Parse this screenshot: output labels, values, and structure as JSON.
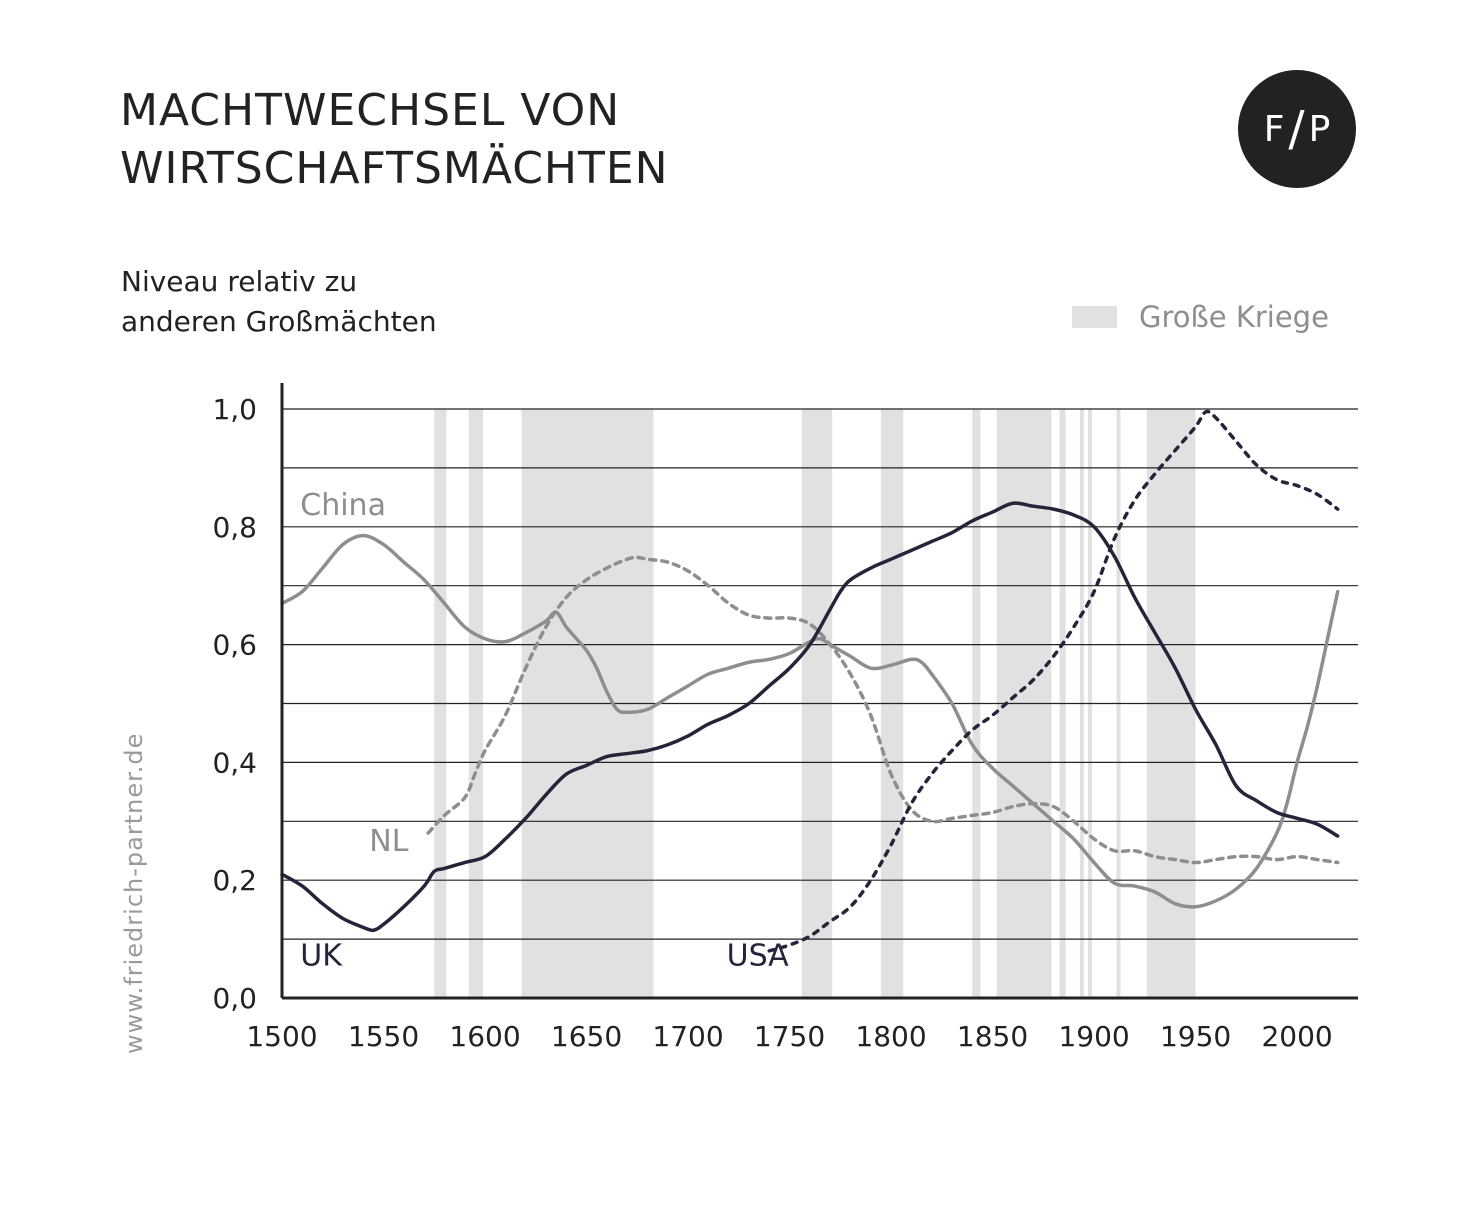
{
  "header": {
    "title_line1": "MACHTWECHSEL VON",
    "title_line2": "WIRTSCHAFTSMÄCHTEN",
    "subtitle_line1": "Niveau relativ zu",
    "subtitle_line2": "anderen Großmächten"
  },
  "logo": {
    "left": "F",
    "slash": "/",
    "right": "P"
  },
  "legend": {
    "wars_label": "Große Kriege",
    "wars_color": "#e1e1e1"
  },
  "watermark": "www.friedrich-partner.de",
  "chart_data": {
    "type": "line",
    "xlim": [
      1500,
      2030
    ],
    "ylim": [
      0,
      1.05
    ],
    "x_ticks": [
      1500,
      1550,
      1600,
      1650,
      1700,
      1750,
      1800,
      1850,
      1900,
      1950,
      2000
    ],
    "y_ticks": [
      {
        "value": 0.0,
        "label": "0,0"
      },
      {
        "value": 0.2,
        "label": "0,2"
      },
      {
        "value": 0.4,
        "label": "0,4"
      },
      {
        "value": 0.6,
        "label": "0,6"
      },
      {
        "value": 0.8,
        "label": "0,8"
      },
      {
        "value": 1.0,
        "label": "1,0"
      }
    ],
    "gridlines": [
      0.1,
      0.2,
      0.3,
      0.4,
      0.5,
      0.6,
      0.7,
      0.8,
      0.9,
      1.0
    ],
    "wars": [
      [
        1575,
        1581
      ],
      [
        1592,
        1599
      ],
      [
        1618,
        1683
      ],
      [
        1756,
        1771
      ],
      [
        1795,
        1806
      ],
      [
        1840,
        1844
      ],
      [
        1852,
        1879
      ],
      [
        1883,
        1886
      ],
      [
        1893,
        1895
      ],
      [
        1897,
        1899
      ],
      [
        1911,
        1913
      ],
      [
        1926,
        1950
      ]
    ],
    "series": [
      {
        "name": "China",
        "color": "#8e8e8e",
        "dash": "",
        "label_pos": [
          1509,
          0.82
        ],
        "points": [
          [
            1500,
            0.67
          ],
          [
            1510,
            0.69
          ],
          [
            1520,
            0.73
          ],
          [
            1530,
            0.77
          ],
          [
            1540,
            0.785
          ],
          [
            1550,
            0.77
          ],
          [
            1560,
            0.74
          ],
          [
            1570,
            0.71
          ],
          [
            1580,
            0.67
          ],
          [
            1590,
            0.63
          ],
          [
            1600,
            0.61
          ],
          [
            1610,
            0.605
          ],
          [
            1620,
            0.62
          ],
          [
            1630,
            0.64
          ],
          [
            1635,
            0.655
          ],
          [
            1640,
            0.63
          ],
          [
            1645,
            0.61
          ],
          [
            1650,
            0.59
          ],
          [
            1655,
            0.56
          ],
          [
            1660,
            0.52
          ],
          [
            1665,
            0.49
          ],
          [
            1670,
            0.485
          ],
          [
            1680,
            0.49
          ],
          [
            1690,
            0.51
          ],
          [
            1700,
            0.53
          ],
          [
            1710,
            0.55
          ],
          [
            1720,
            0.56
          ],
          [
            1730,
            0.57
          ],
          [
            1740,
            0.575
          ],
          [
            1750,
            0.585
          ],
          [
            1760,
            0.605
          ],
          [
            1765,
            0.61
          ],
          [
            1770,
            0.6
          ],
          [
            1780,
            0.58
          ],
          [
            1790,
            0.56
          ],
          [
            1800,
            0.565
          ],
          [
            1810,
            0.575
          ],
          [
            1815,
            0.57
          ],
          [
            1820,
            0.55
          ],
          [
            1830,
            0.5
          ],
          [
            1840,
            0.43
          ],
          [
            1850,
            0.39
          ],
          [
            1860,
            0.36
          ],
          [
            1870,
            0.33
          ],
          [
            1880,
            0.3
          ],
          [
            1890,
            0.27
          ],
          [
            1900,
            0.23
          ],
          [
            1910,
            0.195
          ],
          [
            1920,
            0.19
          ],
          [
            1930,
            0.18
          ],
          [
            1940,
            0.16
          ],
          [
            1950,
            0.155
          ],
          [
            1960,
            0.165
          ],
          [
            1970,
            0.185
          ],
          [
            1980,
            0.22
          ],
          [
            1990,
            0.28
          ],
          [
            1995,
            0.33
          ],
          [
            2000,
            0.4
          ],
          [
            2005,
            0.46
          ],
          [
            2010,
            0.53
          ],
          [
            2015,
            0.61
          ],
          [
            2020,
            0.69
          ]
        ]
      },
      {
        "name": "NL",
        "color": "#8e8e8e",
        "dash": "6 6",
        "label_pos": [
          1543,
          0.25
        ],
        "points": [
          [
            1572,
            0.28
          ],
          [
            1580,
            0.31
          ],
          [
            1590,
            0.34
          ],
          [
            1595,
            0.38
          ],
          [
            1600,
            0.42
          ],
          [
            1610,
            0.48
          ],
          [
            1620,
            0.56
          ],
          [
            1630,
            0.63
          ],
          [
            1640,
            0.68
          ],
          [
            1650,
            0.71
          ],
          [
            1660,
            0.73
          ],
          [
            1670,
            0.745
          ],
          [
            1675,
            0.748
          ],
          [
            1680,
            0.745
          ],
          [
            1690,
            0.74
          ],
          [
            1700,
            0.725
          ],
          [
            1710,
            0.7
          ],
          [
            1720,
            0.67
          ],
          [
            1730,
            0.65
          ],
          [
            1740,
            0.645
          ],
          [
            1750,
            0.645
          ],
          [
            1760,
            0.635
          ],
          [
            1770,
            0.6
          ],
          [
            1780,
            0.55
          ],
          [
            1790,
            0.48
          ],
          [
            1800,
            0.38
          ],
          [
            1810,
            0.32
          ],
          [
            1820,
            0.3
          ],
          [
            1830,
            0.305
          ],
          [
            1840,
            0.31
          ],
          [
            1850,
            0.315
          ],
          [
            1860,
            0.325
          ],
          [
            1870,
            0.33
          ],
          [
            1880,
            0.325
          ],
          [
            1890,
            0.3
          ],
          [
            1900,
            0.27
          ],
          [
            1910,
            0.25
          ],
          [
            1920,
            0.25
          ],
          [
            1930,
            0.24
          ],
          [
            1940,
            0.235
          ],
          [
            1950,
            0.23
          ],
          [
            1960,
            0.235
          ],
          [
            1970,
            0.24
          ],
          [
            1980,
            0.24
          ],
          [
            1990,
            0.235
          ],
          [
            2000,
            0.24
          ],
          [
            2010,
            0.235
          ],
          [
            2020,
            0.23
          ]
        ]
      },
      {
        "name": "UK",
        "color": "#25253a",
        "dash": "",
        "label_pos": [
          1509,
          0.055
        ],
        "points": [
          [
            1500,
            0.21
          ],
          [
            1510,
            0.19
          ],
          [
            1520,
            0.16
          ],
          [
            1530,
            0.135
          ],
          [
            1540,
            0.12
          ],
          [
            1545,
            0.115
          ],
          [
            1550,
            0.125
          ],
          [
            1560,
            0.155
          ],
          [
            1570,
            0.19
          ],
          [
            1575,
            0.215
          ],
          [
            1580,
            0.22
          ],
          [
            1590,
            0.23
          ],
          [
            1600,
            0.24
          ],
          [
            1610,
            0.27
          ],
          [
            1620,
            0.305
          ],
          [
            1630,
            0.345
          ],
          [
            1640,
            0.38
          ],
          [
            1650,
            0.395
          ],
          [
            1660,
            0.41
          ],
          [
            1670,
            0.415
          ],
          [
            1680,
            0.42
          ],
          [
            1690,
            0.43
          ],
          [
            1700,
            0.445
          ],
          [
            1710,
            0.465
          ],
          [
            1720,
            0.48
          ],
          [
            1730,
            0.5
          ],
          [
            1740,
            0.53
          ],
          [
            1750,
            0.56
          ],
          [
            1760,
            0.6
          ],
          [
            1770,
            0.66
          ],
          [
            1775,
            0.69
          ],
          [
            1780,
            0.71
          ],
          [
            1790,
            0.73
          ],
          [
            1800,
            0.745
          ],
          [
            1810,
            0.76
          ],
          [
            1820,
            0.775
          ],
          [
            1830,
            0.79
          ],
          [
            1840,
            0.81
          ],
          [
            1850,
            0.825
          ],
          [
            1860,
            0.84
          ],
          [
            1870,
            0.835
          ],
          [
            1880,
            0.83
          ],
          [
            1890,
            0.82
          ],
          [
            1900,
            0.8
          ],
          [
            1910,
            0.75
          ],
          [
            1920,
            0.68
          ],
          [
            1930,
            0.62
          ],
          [
            1940,
            0.56
          ],
          [
            1950,
            0.49
          ],
          [
            1960,
            0.43
          ],
          [
            1970,
            0.36
          ],
          [
            1980,
            0.335
          ],
          [
            1990,
            0.315
          ],
          [
            2000,
            0.305
          ],
          [
            2010,
            0.295
          ],
          [
            2020,
            0.275
          ]
        ]
      },
      {
        "name": "USA",
        "color": "#25253a",
        "dash": "5 7",
        "label_pos": [
          1719,
          0.055
        ],
        "points": [
          [
            1740,
            0.08
          ],
          [
            1750,
            0.09
          ],
          [
            1760,
            0.105
          ],
          [
            1770,
            0.13
          ],
          [
            1780,
            0.155
          ],
          [
            1790,
            0.2
          ],
          [
            1800,
            0.26
          ],
          [
            1810,
            0.33
          ],
          [
            1820,
            0.38
          ],
          [
            1830,
            0.42
          ],
          [
            1840,
            0.455
          ],
          [
            1850,
            0.48
          ],
          [
            1860,
            0.51
          ],
          [
            1870,
            0.54
          ],
          [
            1880,
            0.58
          ],
          [
            1890,
            0.63
          ],
          [
            1900,
            0.69
          ],
          [
            1910,
            0.78
          ],
          [
            1920,
            0.845
          ],
          [
            1930,
            0.89
          ],
          [
            1940,
            0.93
          ],
          [
            1950,
            0.97
          ],
          [
            1955,
            0.995
          ],
          [
            1960,
            0.985
          ],
          [
            1970,
            0.945
          ],
          [
            1980,
            0.905
          ],
          [
            1990,
            0.88
          ],
          [
            2000,
            0.87
          ],
          [
            2010,
            0.855
          ],
          [
            2020,
            0.83
          ]
        ]
      }
    ]
  }
}
